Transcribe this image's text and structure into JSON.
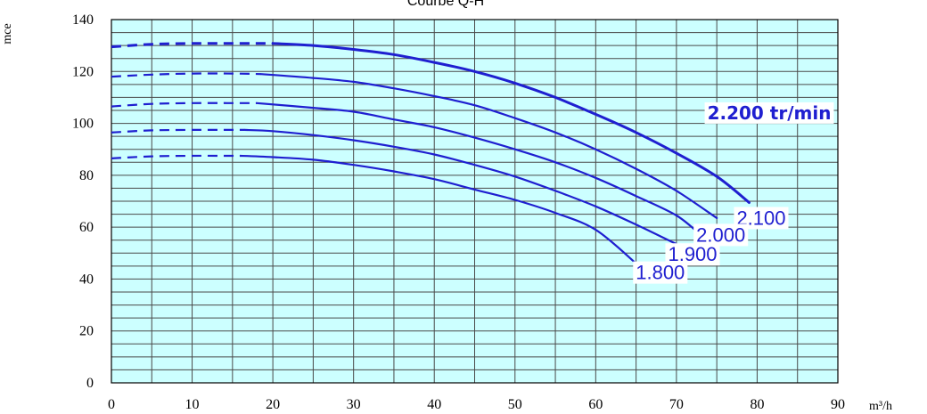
{
  "chart_data": {
    "type": "line",
    "title": "Courbe Q-H",
    "xlabel": "m³/h",
    "ylabel": "mce",
    "xlim": [
      0,
      90
    ],
    "ylim": [
      0,
      140
    ],
    "xticks": [
      0,
      10,
      20,
      30,
      40,
      50,
      60,
      70,
      80,
      90
    ],
    "yticks": [
      0,
      20,
      40,
      60,
      80,
      100,
      120,
      140
    ],
    "grid": true,
    "background_color": "#ccffff",
    "line_color": "#1f1fd0",
    "series": [
      {
        "name": "2.200 tr/min",
        "dashed": [
          [
            0,
            129.5
          ],
          [
            5,
            130.5
          ],
          [
            10,
            130.8
          ],
          [
            15,
            130.8
          ],
          [
            20,
            130.8
          ]
        ],
        "solid": [
          [
            20,
            130.8
          ],
          [
            25,
            130
          ],
          [
            30,
            128.5
          ],
          [
            35,
            126.5
          ],
          [
            40,
            123.5
          ],
          [
            45,
            120
          ],
          [
            50,
            115.5
          ],
          [
            55,
            110
          ],
          [
            60,
            103.5
          ],
          [
            65,
            96.5
          ],
          [
            70,
            88.5
          ],
          [
            75,
            79.5
          ],
          [
            79,
            69.5
          ]
        ]
      },
      {
        "name": "2.100",
        "dashed": [
          [
            0,
            118
          ],
          [
            5,
            118.8
          ],
          [
            10,
            119.2
          ],
          [
            15,
            119.2
          ],
          [
            18.5,
            119
          ]
        ],
        "solid": [
          [
            18.5,
            119
          ],
          [
            25,
            117.5
          ],
          [
            30,
            116
          ],
          [
            35,
            113.5
          ],
          [
            40,
            110.5
          ],
          [
            45,
            107
          ],
          [
            50,
            102
          ],
          [
            55,
            96.5
          ],
          [
            60,
            90
          ],
          [
            65,
            82.5
          ],
          [
            70,
            74
          ],
          [
            75,
            63.5
          ]
        ]
      },
      {
        "name": "2.000",
        "dashed": [
          [
            0,
            106.5
          ],
          [
            5,
            107.5
          ],
          [
            10,
            107.8
          ],
          [
            15,
            107.8
          ],
          [
            18,
            107.8
          ]
        ],
        "solid": [
          [
            18,
            107.8
          ],
          [
            25,
            106
          ],
          [
            30,
            104.5
          ],
          [
            35,
            101.5
          ],
          [
            40,
            98.5
          ],
          [
            45,
            94.5
          ],
          [
            50,
            90
          ],
          [
            55,
            85
          ],
          [
            60,
            79
          ],
          [
            65,
            72
          ],
          [
            70,
            64.5
          ],
          [
            73,
            57
          ]
        ]
      },
      {
        "name": "1.900",
        "dashed": [
          [
            0,
            96.5
          ],
          [
            5,
            97.3
          ],
          [
            10,
            97.5
          ],
          [
            15,
            97.5
          ],
          [
            16.5,
            97.5
          ]
        ],
        "solid": [
          [
            16.5,
            97.5
          ],
          [
            20,
            97
          ],
          [
            25,
            95.5
          ],
          [
            30,
            93.5
          ],
          [
            35,
            91
          ],
          [
            40,
            88
          ],
          [
            45,
            84
          ],
          [
            50,
            79.5
          ],
          [
            55,
            74
          ],
          [
            60,
            68
          ],
          [
            65,
            61
          ],
          [
            70,
            53.5
          ],
          [
            71.5,
            51.5
          ]
        ]
      },
      {
        "name": "1.800",
        "dashed": [
          [
            0,
            86.5
          ],
          [
            5,
            87.3
          ],
          [
            10,
            87.5
          ],
          [
            15,
            87.5
          ],
          [
            16,
            87.5
          ]
        ],
        "solid": [
          [
            16,
            87.5
          ],
          [
            20,
            87
          ],
          [
            25,
            86
          ],
          [
            30,
            84
          ],
          [
            35,
            81.5
          ],
          [
            40,
            78.5
          ],
          [
            45,
            74.5
          ],
          [
            50,
            70.5
          ],
          [
            55,
            65.5
          ],
          [
            60,
            59
          ],
          [
            65,
            46
          ]
        ]
      }
    ],
    "labels": [
      {
        "text": "2.200 tr/min",
        "x": 81.5,
        "y": 104,
        "bold": true
      },
      {
        "text": "2.100",
        "x": 80.5,
        "y": 63.5
      },
      {
        "text": "2.000",
        "x": 75.5,
        "y": 57
      },
      {
        "text": "1.900",
        "x": 72,
        "y": 49.5
      },
      {
        "text": "1.800",
        "x": 68,
        "y": 42.5
      }
    ]
  }
}
